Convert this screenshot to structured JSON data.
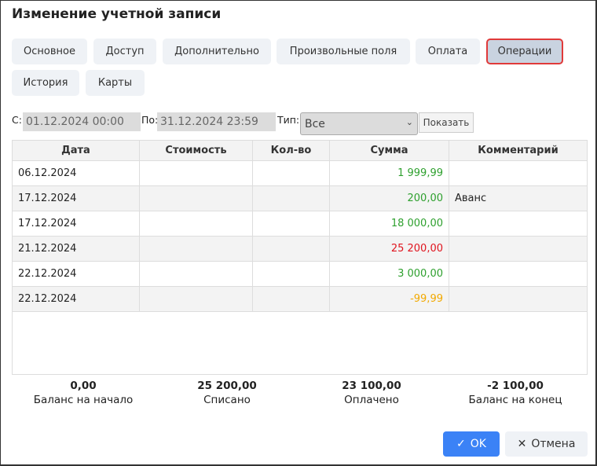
{
  "dialog": {
    "title": "Изменение учетной записи"
  },
  "tabs": [
    "Основное",
    "Доступ",
    "Дополнительно",
    "Произвольные поля",
    "Оплата",
    "Операции",
    "История",
    "Карты"
  ],
  "active_tab": "Операции",
  "filter": {
    "from_label": "С:",
    "from_value": "01.12.2024 00:00",
    "to_label": "По:",
    "to_value": "31.12.2024 23:59",
    "type_label": "Тип:",
    "type_value": "Все",
    "show_button": "Показать"
  },
  "table": {
    "columns": [
      "Дата",
      "Стоимость",
      "Кол-во",
      "Сумма",
      "Комментарий"
    ],
    "rows": [
      {
        "date": "06.12.2024",
        "cost": "",
        "qty": "",
        "sum": "1 999,99",
        "sum_color": "#2ea02e",
        "comment": ""
      },
      {
        "date": "17.12.2024",
        "cost": "",
        "qty": "",
        "sum": "200,00",
        "sum_color": "#2ea02e",
        "comment": "Аванс"
      },
      {
        "date": "17.12.2024",
        "cost": "",
        "qty": "",
        "sum": "18 000,00",
        "sum_color": "#2ea02e",
        "comment": ""
      },
      {
        "date": "21.12.2024",
        "cost": "",
        "qty": "",
        "sum": "25 200,00",
        "sum_color": "#e0141e",
        "comment": ""
      },
      {
        "date": "22.12.2024",
        "cost": "",
        "qty": "",
        "sum": "3 000,00",
        "sum_color": "#2ea02e",
        "comment": ""
      },
      {
        "date": "22.12.2024",
        "cost": "",
        "qty": "",
        "sum": "-99,99",
        "sum_color": "#f2a900",
        "comment": ""
      }
    ]
  },
  "summary": [
    {
      "value": "0,00",
      "label": "Баланс на начало"
    },
    {
      "value": "25 200,00",
      "label": "Списано"
    },
    {
      "value": "23 100,00",
      "label": "Оплачено"
    },
    {
      "value": "-2 100,00",
      "label": "Баланс на конец"
    }
  ],
  "buttons": {
    "ok": "OK",
    "cancel": "Отмена"
  }
}
